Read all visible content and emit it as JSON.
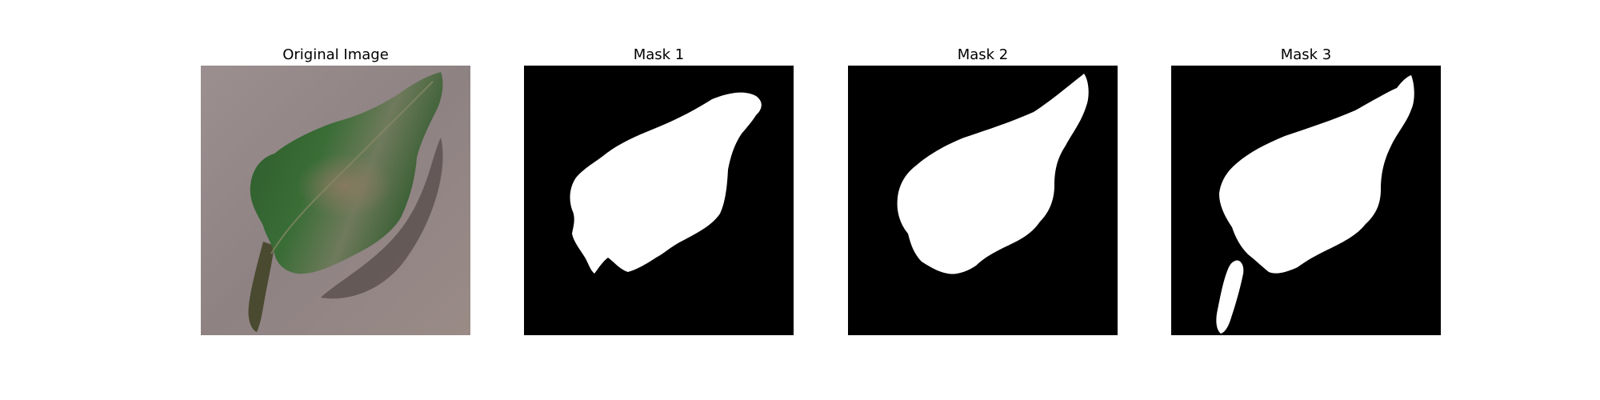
{
  "figure": {
    "panels": [
      {
        "title": "Original Image"
      },
      {
        "title": "Mask 1"
      },
      {
        "title": "Mask 2"
      },
      {
        "title": "Mask 3"
      }
    ]
  },
  "colors": {
    "background": "#ffffff",
    "mask_background": "#000000",
    "mask_foreground": "#ffffff",
    "leaf_green": "#2f5a2a",
    "leaf_brown": "#7b6b55",
    "surface": "#8f8282"
  }
}
